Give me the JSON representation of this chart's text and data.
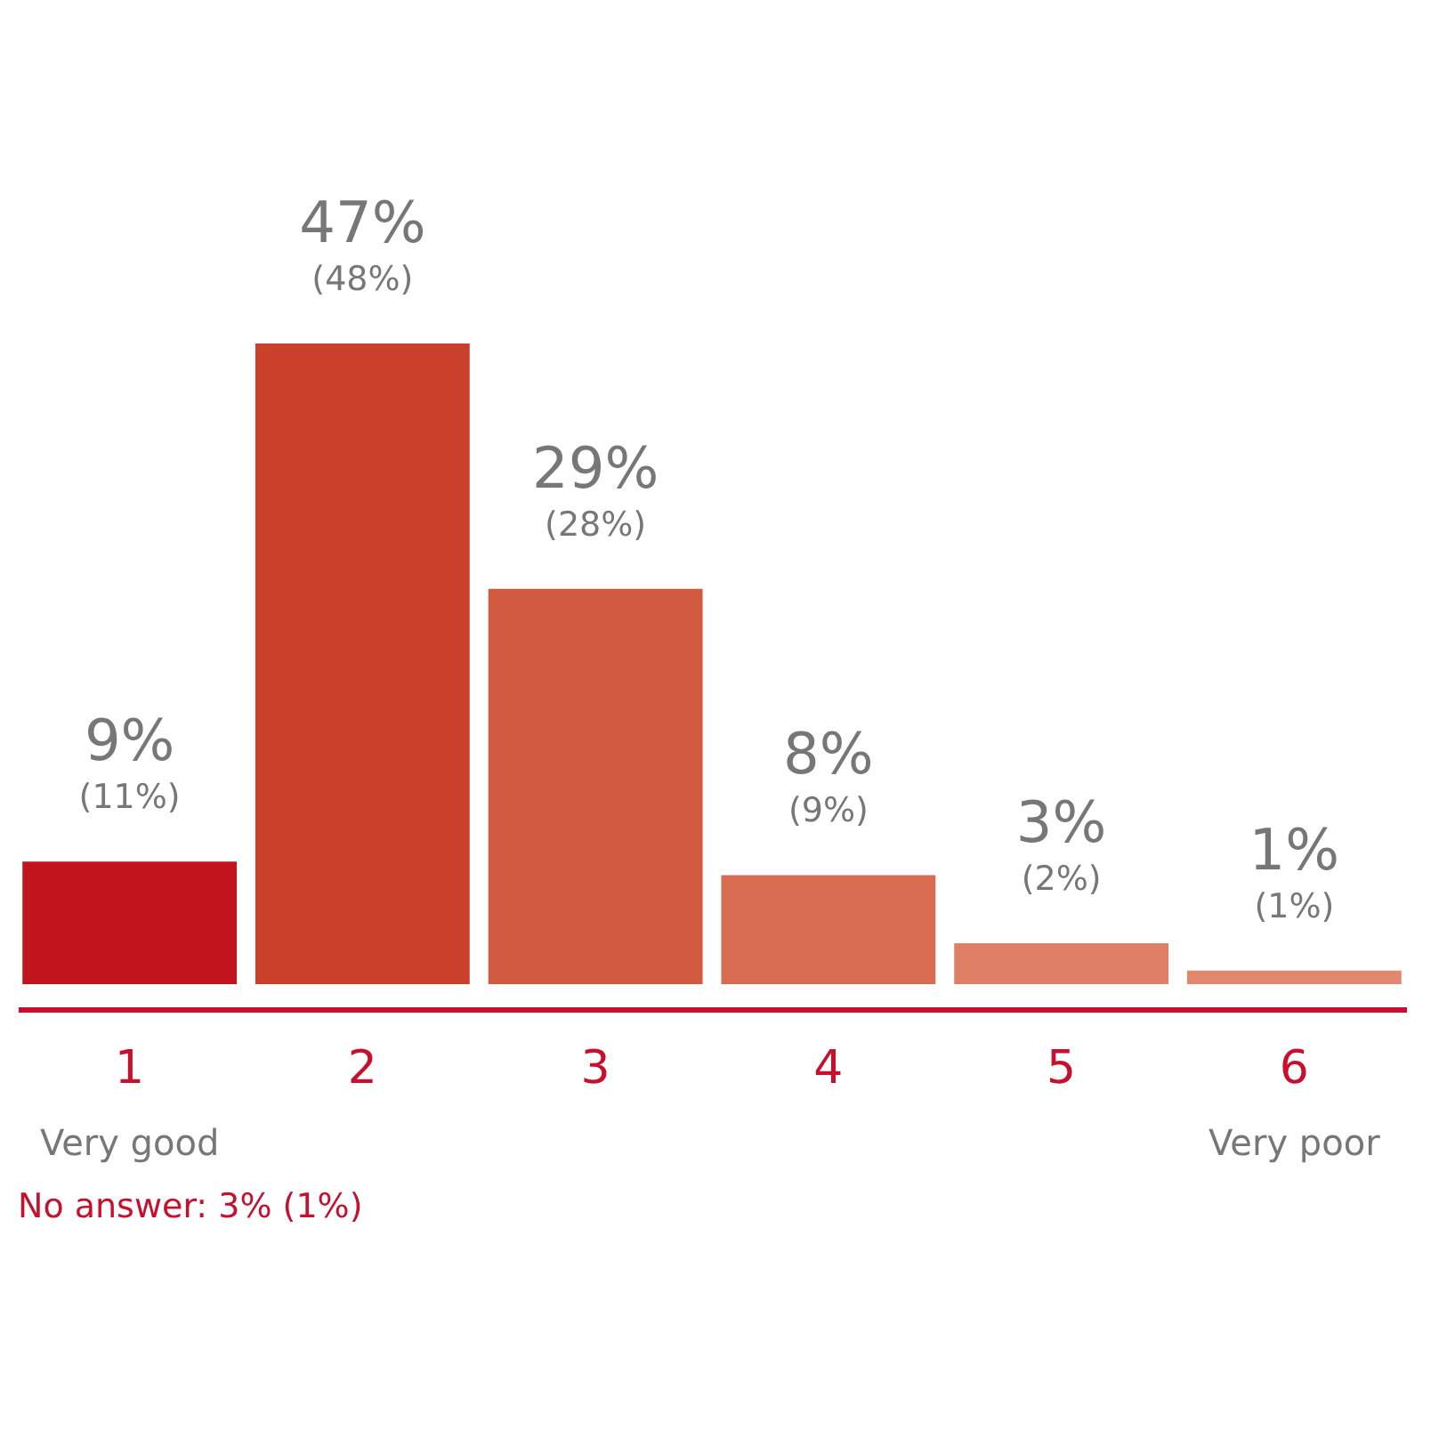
{
  "chart_data": {
    "type": "bar",
    "categories": [
      "1",
      "2",
      "3",
      "4",
      "5",
      "6"
    ],
    "values": [
      9,
      47,
      29,
      8,
      3,
      1
    ],
    "colors": [
      "#c1141c",
      "#cb402b",
      "#d25a40",
      "#d76c51",
      "#df7f66",
      "#e0876d"
    ],
    "value_labels": [
      "9%",
      "47%",
      "29%",
      "8%",
      "3%",
      "1%"
    ],
    "annotations": [
      "(11%)",
      "(48%)",
      "(28%)",
      "(9%)",
      "(2%)",
      "(1%)",
      "Very good",
      "Very poor",
      "No answer: 3% (1%)"
    ],
    "grid": false
  }
}
